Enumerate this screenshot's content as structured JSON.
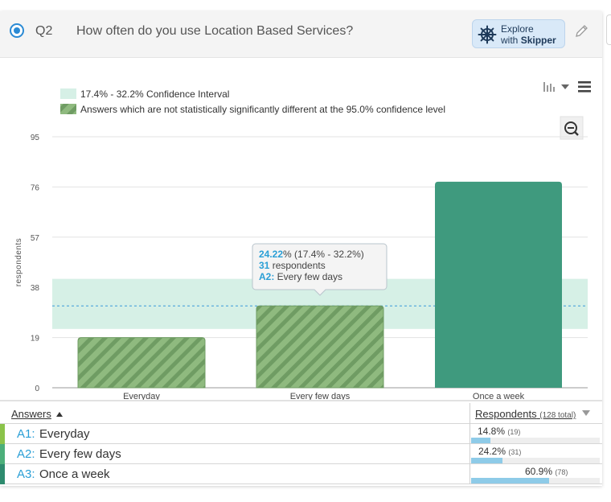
{
  "question": {
    "number": "Q2",
    "title": "How often do you use Location Based Services?"
  },
  "skipper": {
    "line1": "Explore",
    "line2_prefix": "with ",
    "line2_bold": "Skipper"
  },
  "legend": {
    "ci_label": "17.4% - 32.2% Confidence Interval",
    "nonsig_label": "Answers which are not statistically significantly different at the 95.0% confidence level"
  },
  "tooltip": {
    "pct": "24.22",
    "pct_suffix": "% (17.4% - 32.2%)",
    "count": "31",
    "count_suffix": " respondents",
    "code": "A2:",
    "answer": " Every few days"
  },
  "chart_data": {
    "type": "bar",
    "categories": [
      "Everyday",
      "Every few days",
      "Once a week"
    ],
    "values": [
      19,
      31,
      78
    ],
    "ylabel": "respondents",
    "yticks": [
      0,
      19,
      38,
      57,
      76,
      95
    ],
    "ylim": [
      0,
      95
    ],
    "confidence_interval": {
      "low": 22.27,
      "high": 41.22,
      "expected": 31
    },
    "bar_styles": [
      "hatched",
      "hatched",
      "solid"
    ],
    "colors": {
      "bar": "#3f9a7e",
      "hatch_light": "#8fba7f",
      "hatch_dark": "#6f9c63",
      "ci_band": "#d6f0e6",
      "expected_line": "#3a9ad9"
    }
  },
  "table": {
    "col_answers": "Answers",
    "col_respondents": "Respondents",
    "col_total": "(128 total)",
    "rows": [
      {
        "code": "A1:",
        "label": "Everyday",
        "pct": "14.8%",
        "count": "(19)",
        "fraction": 0.148,
        "color": "#8bc34a"
      },
      {
        "code": "A2:",
        "label": "Every few days",
        "pct": "24.2%",
        "count": "(31)",
        "fraction": 0.242,
        "color": "#4caf7a"
      },
      {
        "code": "A3:",
        "label": "Once a week",
        "pct": "60.9%",
        "count": "(78)",
        "fraction": 0.609,
        "color": "#2e8b6e"
      }
    ]
  }
}
